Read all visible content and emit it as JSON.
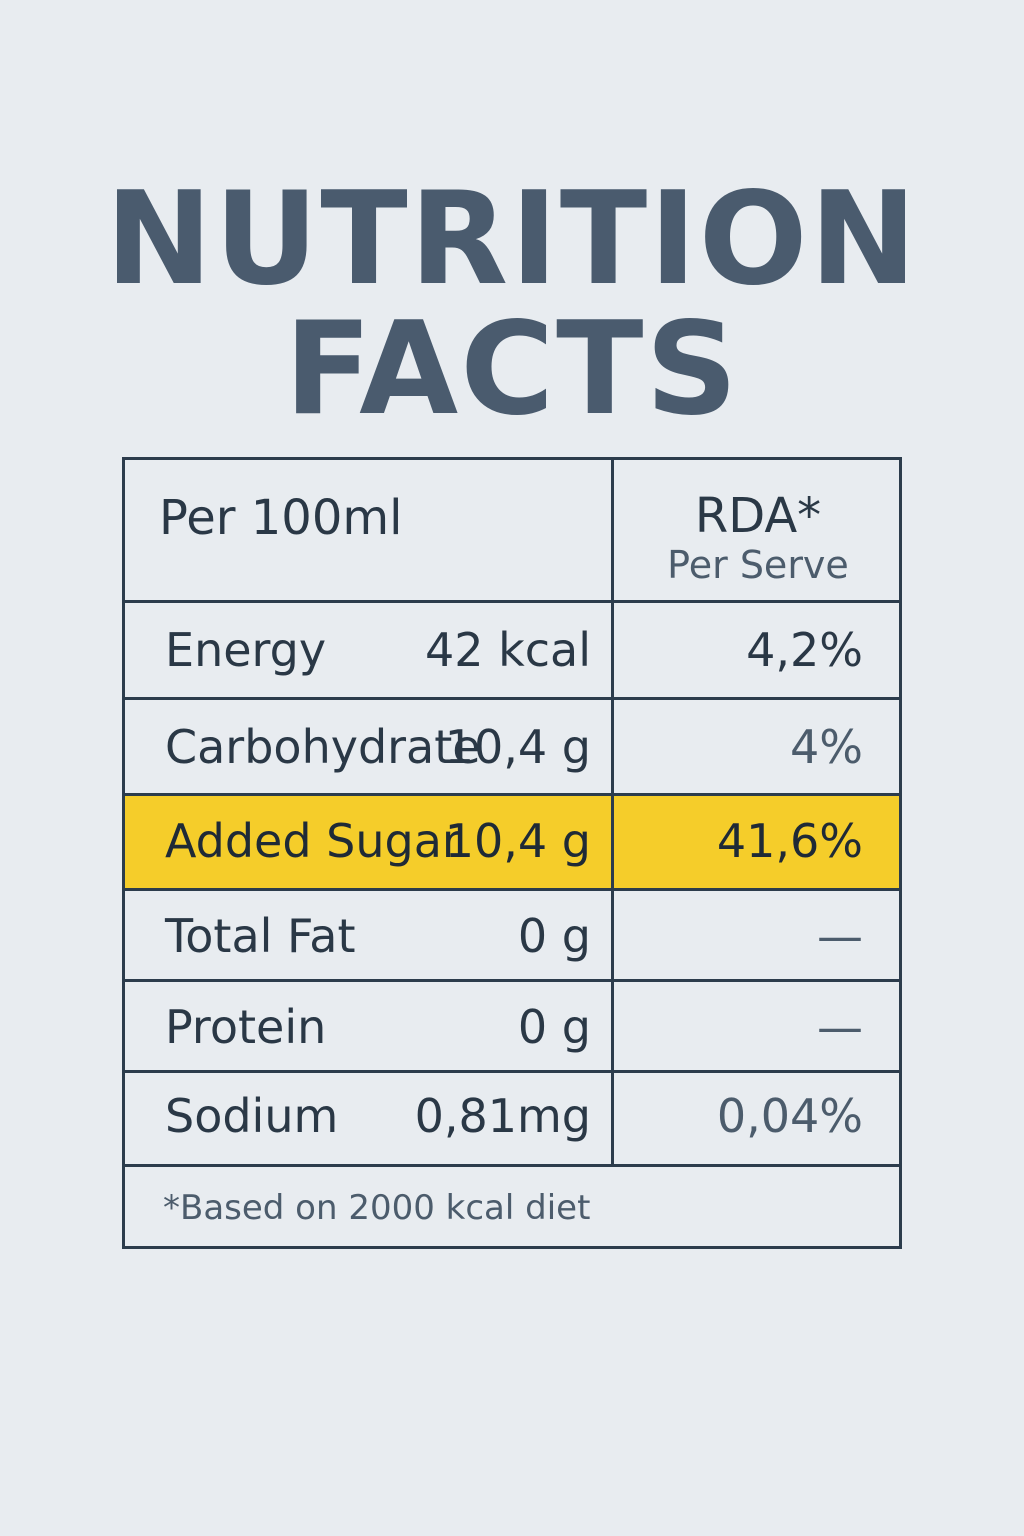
{
  "title": {
    "line1": "NUTRITION",
    "line2": "FACTS"
  },
  "table": {
    "header_left": "Per 100ml",
    "header_right_title": "RDA*",
    "header_right_sub": "Per Serve",
    "rows": [
      {
        "nutrient": "Energy",
        "amount": "42 kcal",
        "rda": "4,2%",
        "highlight": false
      },
      {
        "nutrient": "Carbohydrate",
        "amount": "10,4 g",
        "rda": "4%",
        "highlight": false
      },
      {
        "nutrient": "Added Sugar",
        "amount": "10,4 g",
        "rda": "41,6%",
        "highlight": true
      },
      {
        "nutrient": "Total Fat",
        "amount": "0 g",
        "rda": "—",
        "highlight": false
      },
      {
        "nutrient": "Protein",
        "amount": "0 g",
        "rda": "—",
        "highlight": false
      },
      {
        "nutrient": "Sodium",
        "amount": "0,81mg",
        "rda": "0,04%",
        "highlight": false
      }
    ],
    "footnote": "*Based on 2000 kcal diet"
  },
  "colors": {
    "background": "#e8ecf0",
    "title": "#4a5b6e",
    "border": "#2c3c4c",
    "highlight": "#f5cd2a"
  }
}
